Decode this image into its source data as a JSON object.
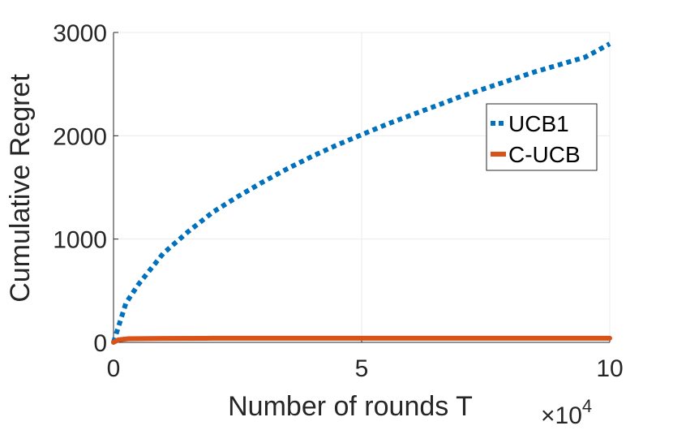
{
  "chart_data": {
    "type": "line",
    "xlabel": "Number of rounds T",
    "ylabel": "Cumulative Regret",
    "x_multiplier_label": "×10",
    "x_multiplier_exponent": "4",
    "xlim": [
      0,
      10
    ],
    "ylim": [
      0,
      3000
    ],
    "xticks": [
      "0",
      "5",
      "10"
    ],
    "yticks": [
      "0",
      "1000",
      "2000",
      "3000"
    ],
    "grid": true,
    "legend_position": "top-right",
    "series": [
      {
        "name": "UCB1",
        "color": "#0072BD",
        "style": "dotted",
        "x": [
          0,
          0.25,
          0.5,
          1,
          1.5,
          2,
          2.5,
          3,
          3.5,
          4,
          4.5,
          5,
          5.5,
          6,
          6.5,
          7,
          7.5,
          8,
          8.5,
          9,
          9.5,
          10
        ],
        "y": [
          0,
          380,
          560,
          860,
          1070,
          1260,
          1410,
          1550,
          1680,
          1800,
          1910,
          2010,
          2110,
          2200,
          2290,
          2380,
          2460,
          2540,
          2620,
          2690,
          2760,
          2890
        ]
      },
      {
        "name": "C-UCB",
        "color": "#D95319",
        "style": "solid",
        "x": [
          0,
          0.1,
          0.3,
          1,
          2,
          5,
          10
        ],
        "y": [
          0,
          25,
          35,
          38,
          40,
          40,
          40
        ]
      }
    ]
  }
}
